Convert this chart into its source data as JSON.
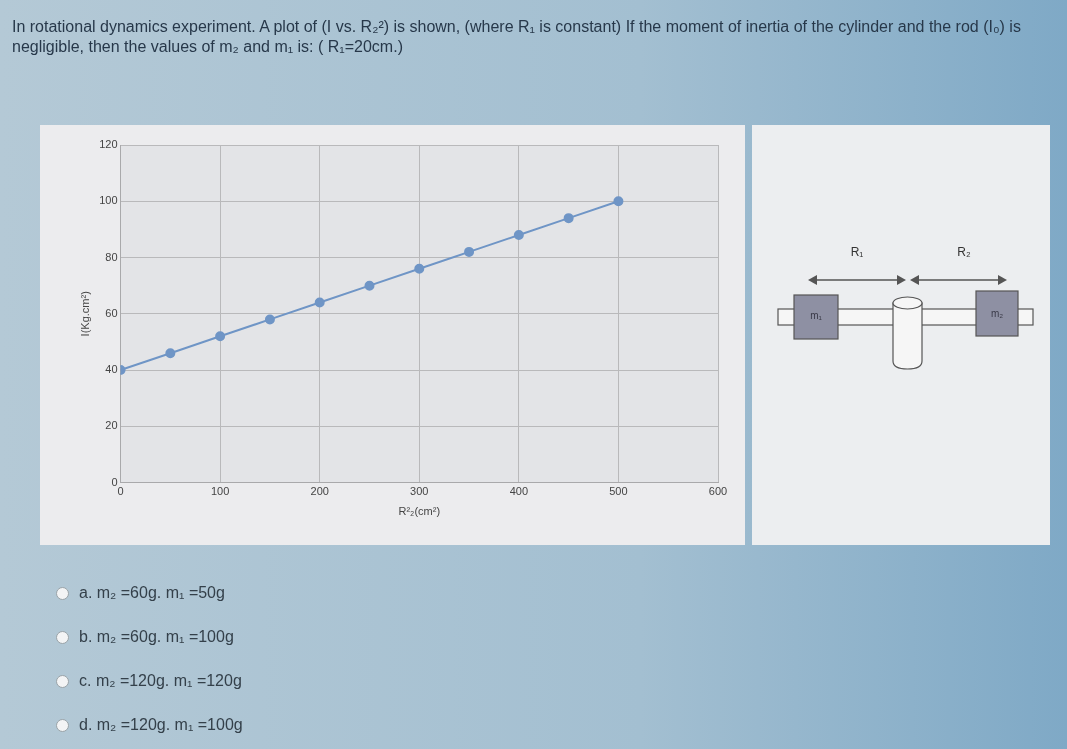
{
  "chart_data": {
    "type": "line",
    "title": "In rotational dynamics experiment. A plot of (I vs. R₂²) is shown, (where R₁ is constant) If the moment of inertia of the cylinder and the rod (I₀) is negligible, then the values of m₂ and m₁ is: ( R₁=20cm.)",
    "xlabel": "R²₂(cm²)",
    "ylabel": "I(Kg.cm²)",
    "x": [
      0,
      50,
      100,
      150,
      200,
      250,
      300,
      350,
      400,
      450,
      500
    ],
    "values": [
      40,
      46,
      52,
      58,
      64,
      70,
      76,
      82,
      88,
      94,
      100
    ],
    "color": "#6f95c6",
    "marker": "circle",
    "grid": true,
    "xlim": [
      0,
      600
    ],
    "xticks": [
      0,
      100,
      200,
      300,
      400,
      500,
      600
    ],
    "ylim": [
      0,
      120
    ],
    "yticks": [
      0,
      20,
      40,
      60,
      80,
      100,
      120
    ],
    "annotations": [
      "a. m₂ =60g. m₁ =50g",
      "b. m₂ =60g. m₁ =100g",
      "c. m₂ =120g. m₁ =120g",
      "d. m₂ =120g. m₁ =100g",
      "R₁",
      "R₂",
      "m₁",
      "m₂"
    ]
  }
}
